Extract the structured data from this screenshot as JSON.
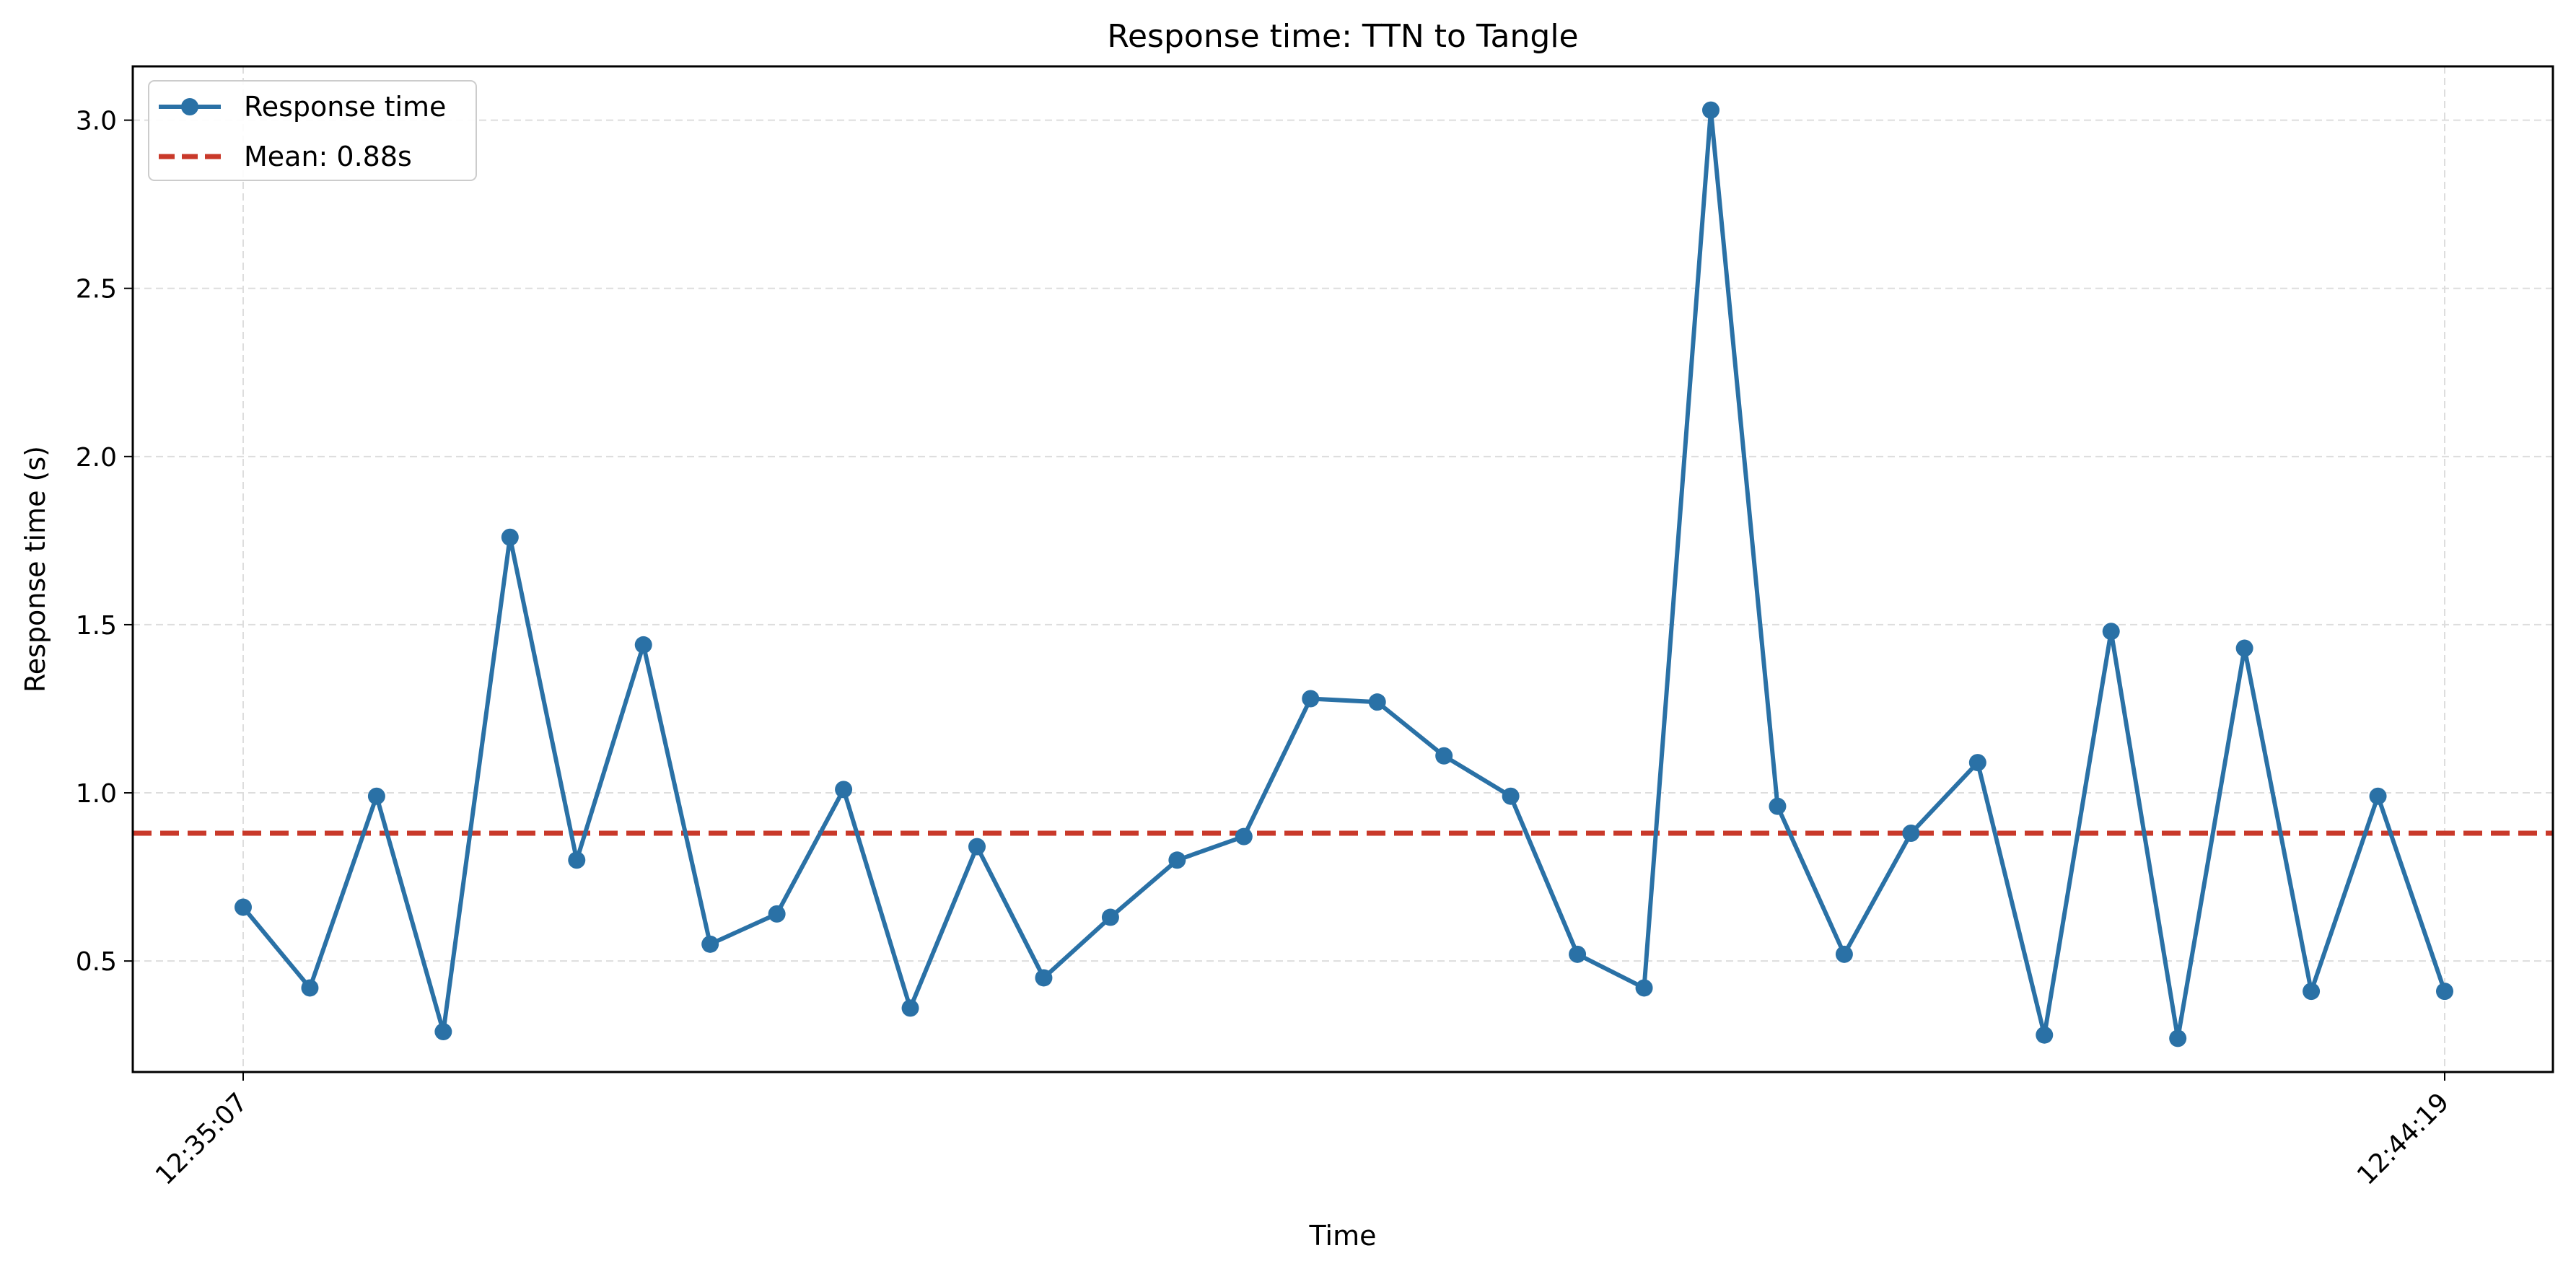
{
  "chart_data": {
    "type": "line",
    "title": "Response time: TTN to Tangle",
    "xlabel": "Time",
    "ylabel": "Response time (s)",
    "x_tick_labels": [
      "12:35:07",
      "12:44:19"
    ],
    "y_ticks": [
      0.5,
      1.0,
      1.5,
      2.0,
      2.5,
      3.0
    ],
    "y_tick_labels": [
      "0.5",
      "1.0",
      "1.5",
      "2.0",
      "2.5",
      "3.0"
    ],
    "ylim": [
      0.17,
      3.16
    ],
    "grid": true,
    "legend_placement": "top-left",
    "series": [
      {
        "name": "Response time",
        "color": "#2a71a6",
        "marker": "circle",
        "values": [
          0.66,
          0.42,
          0.99,
          0.29,
          1.76,
          0.8,
          1.44,
          0.55,
          0.64,
          1.01,
          0.36,
          0.84,
          0.45,
          0.63,
          0.8,
          0.87,
          1.28,
          1.27,
          1.11,
          0.99,
          0.52,
          0.42,
          3.03,
          0.96,
          0.52,
          0.88,
          1.09,
          0.28,
          1.48,
          0.27,
          1.43,
          0.41,
          0.99,
          0.41
        ]
      }
    ],
    "reference_lines": [
      {
        "name": "Mean: 0.88s",
        "value": 0.88,
        "color": "#c9392a",
        "style": "dashed"
      }
    ]
  }
}
